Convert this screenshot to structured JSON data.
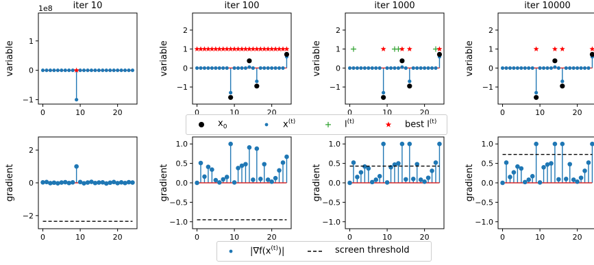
{
  "colors": {
    "stem": "#1f77b4",
    "x0": "#000000",
    "l_plus": "#2ca02c",
    "best_star": "#ff0000",
    "baseline": "#d62728",
    "axis": "#000000"
  },
  "legend_top": [
    {
      "label": "x",
      "sub": "0",
      "sup": "",
      "marker": "black-dot"
    },
    {
      "label": "x",
      "sub": "",
      "sup": "(t)",
      "marker": "blue-dot"
    },
    {
      "label": "l",
      "sub": "",
      "sup": "(t)",
      "marker": "green-plus"
    },
    {
      "label": "best l",
      "sub": "",
      "sup": "(t)",
      "marker": "red-star"
    }
  ],
  "legend_bottom": [
    {
      "label": "|∇f(x",
      "sup": "(t)",
      "suffix": ")|",
      "marker": "blue-dot"
    },
    {
      "label": "screen threshold",
      "sup": "",
      "suffix": "",
      "marker": "dashed-line"
    }
  ],
  "chart_data": [
    {
      "type": "scatter",
      "title": "iter 10",
      "ylabel": "variable",
      "offset_label": "1e8",
      "xlim": [
        -1.2,
        25.2
      ],
      "ylim": [
        -1.15,
        1.95
      ],
      "xticks": [
        0,
        10,
        20
      ],
      "yticks": [
        -1,
        0,
        1
      ],
      "ytick_labels": [
        "−1",
        "0",
        "1"
      ],
      "series": [
        {
          "x": [
            0,
            1,
            2,
            3,
            4,
            5,
            6,
            7,
            8,
            9,
            10,
            11,
            12,
            13,
            14,
            15,
            16,
            17,
            18,
            19,
            20,
            21,
            22,
            23,
            24
          ],
          "y": [
            0,
            0,
            0,
            0,
            0,
            0,
            0,
            0,
            0,
            -1,
            0,
            0,
            0,
            0,
            0,
            0,
            0,
            0,
            0,
            0,
            0,
            0,
            0,
            0,
            0
          ]
        }
      ],
      "x0_points": [],
      "l_points": [],
      "best_points": [
        {
          "x": 9,
          "y": 0
        }
      ]
    },
    {
      "type": "scatter",
      "title": "iter 100",
      "ylabel": "variable",
      "xlim": [
        -1.2,
        25.2
      ],
      "ylim": [
        -1.9,
        2.9
      ],
      "xticks": [
        0,
        10,
        20
      ],
      "yticks": [
        -1,
        0,
        1,
        2
      ],
      "ytick_labels": [
        "−1",
        "0",
        "1",
        "2"
      ],
      "series": [
        {
          "x": [
            0,
            1,
            2,
            3,
            4,
            5,
            6,
            7,
            8,
            9,
            10,
            11,
            12,
            13,
            14,
            15,
            16,
            17,
            18,
            19,
            20,
            21,
            22,
            23,
            24
          ],
          "y": [
            0,
            0,
            0,
            0,
            0,
            0,
            0,
            0,
            0,
            -1.3,
            0,
            0,
            0,
            0,
            0.05,
            0,
            -0.7,
            0,
            0,
            0,
            0,
            0,
            0,
            0,
            0.6
          ]
        }
      ],
      "x0_points": [
        {
          "x": 9,
          "y": -1.55
        },
        {
          "x": 14,
          "y": 0.38
        },
        {
          "x": 16,
          "y": -0.95
        },
        {
          "x": 24,
          "y": 0.72
        }
      ],
      "l_points": [],
      "best_points": [
        {
          "x": 0,
          "y": 1
        },
        {
          "x": 1,
          "y": 1
        },
        {
          "x": 2,
          "y": 1
        },
        {
          "x": 3,
          "y": 1
        },
        {
          "x": 4,
          "y": 1
        },
        {
          "x": 5,
          "y": 1
        },
        {
          "x": 6,
          "y": 1
        },
        {
          "x": 7,
          "y": 1
        },
        {
          "x": 8,
          "y": 1
        },
        {
          "x": 9,
          "y": 1
        },
        {
          "x": 10,
          "y": 1
        },
        {
          "x": 11,
          "y": 1
        },
        {
          "x": 12,
          "y": 1
        },
        {
          "x": 13,
          "y": 1
        },
        {
          "x": 14,
          "y": 1
        },
        {
          "x": 15,
          "y": 1
        },
        {
          "x": 16,
          "y": 1
        },
        {
          "x": 17,
          "y": 1
        },
        {
          "x": 18,
          "y": 1
        },
        {
          "x": 19,
          "y": 1
        },
        {
          "x": 20,
          "y": 1
        },
        {
          "x": 21,
          "y": 1
        },
        {
          "x": 22,
          "y": 1
        },
        {
          "x": 23,
          "y": 1
        },
        {
          "x": 24,
          "y": 1
        }
      ]
    },
    {
      "type": "scatter",
      "title": "iter 1000",
      "ylabel": "variable",
      "xlim": [
        -1.2,
        25.2
      ],
      "ylim": [
        -1.9,
        2.9
      ],
      "xticks": [
        0,
        10,
        20
      ],
      "yticks": [
        -1,
        0,
        1,
        2
      ],
      "ytick_labels": [
        "−1",
        "0",
        "1",
        "2"
      ],
      "series": [
        {
          "x": [
            0,
            1,
            2,
            3,
            4,
            5,
            6,
            7,
            8,
            9,
            10,
            11,
            12,
            13,
            14,
            15,
            16,
            17,
            18,
            19,
            20,
            21,
            22,
            23,
            24
          ],
          "y": [
            0,
            0,
            0,
            0,
            0,
            0,
            0,
            0,
            0,
            -1.3,
            0,
            0,
            0,
            0,
            0.05,
            0,
            -0.7,
            0,
            0,
            0,
            0,
            0,
            0,
            0,
            0.6
          ]
        }
      ],
      "x0_points": [
        {
          "x": 9,
          "y": -1.55
        },
        {
          "x": 14,
          "y": 0.38
        },
        {
          "x": 16,
          "y": -0.95
        },
        {
          "x": 24,
          "y": 0.72
        }
      ],
      "l_points": [
        {
          "x": 1,
          "y": 1
        },
        {
          "x": 12,
          "y": 1
        },
        {
          "x": 13,
          "y": 1
        },
        {
          "x": 23,
          "y": 1
        }
      ],
      "best_points": [
        {
          "x": 9,
          "y": 1
        },
        {
          "x": 14,
          "y": 1
        },
        {
          "x": 16,
          "y": 1
        },
        {
          "x": 24,
          "y": 1
        }
      ]
    },
    {
      "type": "scatter",
      "title": "iter 10000",
      "ylabel": "variable",
      "xlim": [
        -1.2,
        25.2
      ],
      "ylim": [
        -1.9,
        2.9
      ],
      "xticks": [
        0,
        10,
        20
      ],
      "yticks": [
        -1,
        0,
        1,
        2
      ],
      "ytick_labels": [
        "−1",
        "0",
        "1",
        "2"
      ],
      "series": [
        {
          "x": [
            0,
            1,
            2,
            3,
            4,
            5,
            6,
            7,
            8,
            9,
            10,
            11,
            12,
            13,
            14,
            15,
            16,
            17,
            18,
            19,
            20,
            21,
            22,
            23,
            24
          ],
          "y": [
            0,
            0,
            0,
            0,
            0,
            0,
            0,
            0,
            0,
            -1.3,
            0,
            0,
            0,
            0,
            0.05,
            0,
            -0.7,
            0,
            0,
            0,
            0,
            0,
            0,
            0,
            0.6
          ]
        }
      ],
      "x0_points": [
        {
          "x": 9,
          "y": -1.55
        },
        {
          "x": 14,
          "y": 0.38
        },
        {
          "x": 16,
          "y": -0.95
        },
        {
          "x": 24,
          "y": 0.72
        }
      ],
      "l_points": [],
      "best_points": [
        {
          "x": 9,
          "y": 1
        },
        {
          "x": 14,
          "y": 1
        },
        {
          "x": 16,
          "y": 1
        },
        {
          "x": 24,
          "y": 1
        }
      ]
    },
    {
      "type": "scatter",
      "title": "",
      "ylabel": "gradient",
      "xlim": [
        -1.2,
        25.2
      ],
      "ylim": [
        -2.8,
        2.8
      ],
      "xticks": [
        0,
        10,
        20
      ],
      "yticks": [
        -2,
        0,
        2
      ],
      "ytick_labels": [
        "−2",
        "0",
        "2"
      ],
      "series": [
        {
          "x": [
            0,
            1,
            2,
            3,
            4,
            5,
            6,
            7,
            8,
            9,
            10,
            11,
            12,
            13,
            14,
            15,
            16,
            17,
            18,
            19,
            20,
            21,
            22,
            23,
            24
          ],
          "y": [
            0.03,
            0.05,
            -0.02,
            0.01,
            -0.03,
            0.02,
            0.04,
            -0.01,
            0.03,
            1.0,
            0.05,
            -0.03,
            0.02,
            0.06,
            -0.01,
            0.02,
            0.03,
            -0.04,
            0.01,
            0.05,
            -0.02,
            0.03,
            -0.01,
            0.04,
            0.02
          ]
        }
      ],
      "threshold": -2.35
    },
    {
      "type": "scatter",
      "title": "",
      "ylabel": "gradient",
      "xlim": [
        -1.2,
        25.2
      ],
      "ylim": [
        -1.18,
        1.18
      ],
      "xticks": [
        0,
        10,
        20
      ],
      "yticks": [
        -1.0,
        -0.5,
        0.0,
        0.5,
        1.0
      ],
      "ytick_labels": [
        "−1.0",
        "−0.5",
        "0.0",
        "0.5",
        "1.0"
      ],
      "series": [
        {
          "x": [
            0,
            1,
            2,
            3,
            4,
            5,
            6,
            7,
            8,
            9,
            10,
            11,
            12,
            13,
            14,
            15,
            16,
            17,
            18,
            19,
            20,
            21,
            22,
            23,
            24
          ],
          "y": [
            0.0,
            0.51,
            0.16,
            0.41,
            0.34,
            0.07,
            0.01,
            0.09,
            0.15,
            1.0,
            0.01,
            0.38,
            0.44,
            0.48,
            0.91,
            0.08,
            0.88,
            0.1,
            0.48,
            0.08,
            0.03,
            0.12,
            0.32,
            0.52,
            0.67
          ]
        }
      ],
      "threshold": -0.95
    },
    {
      "type": "scatter",
      "title": "",
      "ylabel": "gradient",
      "xlim": [
        -1.2,
        25.2
      ],
      "ylim": [
        -1.18,
        1.18
      ],
      "xticks": [
        0,
        10,
        20
      ],
      "yticks": [
        -1.0,
        -0.5,
        0.0,
        0.5,
        1.0
      ],
      "ytick_labels": [
        "−1.0",
        "−0.5",
        "0.0",
        "0.5",
        "1.0"
      ],
      "series": [
        {
          "x": [
            0,
            1,
            2,
            3,
            4,
            5,
            6,
            7,
            8,
            9,
            10,
            11,
            12,
            13,
            14,
            15,
            16,
            17,
            18,
            19,
            20,
            21,
            22,
            23,
            24
          ],
          "y": [
            0.0,
            0.52,
            0.15,
            0.27,
            0.42,
            0.37,
            0.02,
            0.08,
            0.17,
            1.0,
            0.01,
            0.4,
            0.47,
            0.5,
            1.0,
            0.09,
            1.0,
            0.1,
            0.48,
            0.08,
            0.03,
            0.13,
            0.31,
            0.52,
            1.0
          ]
        }
      ],
      "threshold": 0.43
    },
    {
      "type": "scatter",
      "title": "",
      "ylabel": "gradient",
      "xlim": [
        -1.2,
        25.2
      ],
      "ylim": [
        -1.18,
        1.18
      ],
      "xticks": [
        0,
        10,
        20
      ],
      "yticks": [
        -1.0,
        -0.5,
        0.0,
        0.5,
        1.0
      ],
      "ytick_labels": [
        "−1.0",
        "−0.5",
        "0.0",
        "0.5",
        "1.0"
      ],
      "series": [
        {
          "x": [
            0,
            1,
            2,
            3,
            4,
            5,
            6,
            7,
            8,
            9,
            10,
            11,
            12,
            13,
            14,
            15,
            16,
            17,
            18,
            19,
            20,
            21,
            22,
            23,
            24
          ],
          "y": [
            0.0,
            0.52,
            0.15,
            0.27,
            0.42,
            0.37,
            0.02,
            0.08,
            0.17,
            1.0,
            0.01,
            0.4,
            0.47,
            0.5,
            1.0,
            0.09,
            1.0,
            0.1,
            0.48,
            0.08,
            0.03,
            0.13,
            0.31,
            0.52,
            1.0
          ]
        }
      ],
      "threshold": 0.73
    }
  ]
}
